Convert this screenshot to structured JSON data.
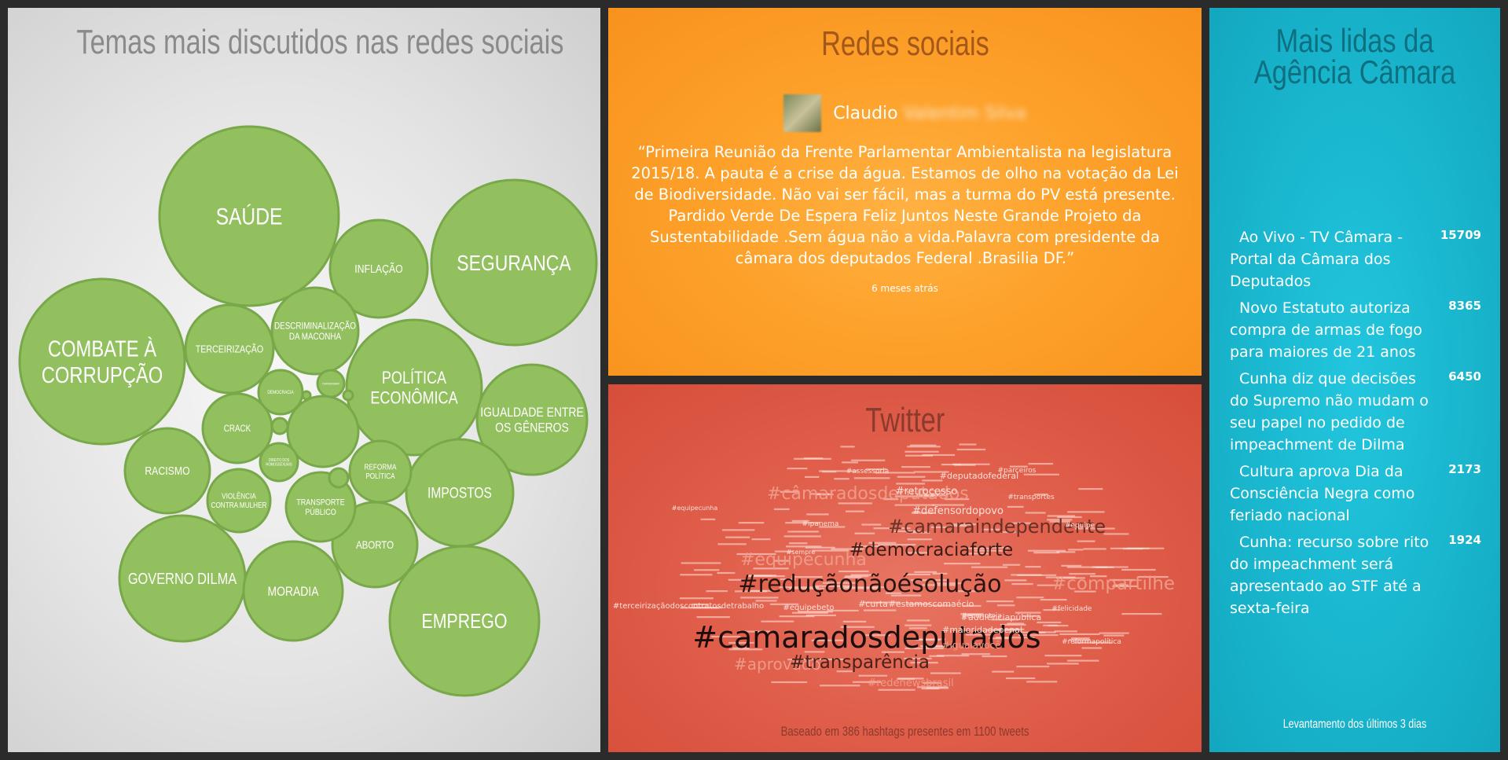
{
  "bubbles": {
    "title": "Temas mais discutidos nas redes sociais",
    "topics": [
      {
        "label": "SAÚDE"
      },
      {
        "label": "SEGURANÇA"
      },
      {
        "label": "COMBATE À\nCORRUPÇÃO"
      },
      {
        "label": "EMPREGO"
      },
      {
        "label": "GOVERNO DILMA"
      },
      {
        "label": "POLÍTICA\nECONÔMICA"
      },
      {
        "label": "IGUALDADE ENTRE\nOS GÊNEROS"
      },
      {
        "label": "IMPOSTOS"
      },
      {
        "label": "MORADIA"
      },
      {
        "label": "INFLAÇÃO"
      },
      {
        "label": "ABORTO"
      },
      {
        "label": "RACISMO"
      },
      {
        "label": "TERCEIRIZAÇÃO"
      },
      {
        "label": "DESCRIMINALIZAÇÃO\nDA MACONHA"
      },
      {
        "label": "TRANSPORTE\nPÚBLICO"
      },
      {
        "label": "CRACK"
      },
      {
        "label": "REFORMA\nPOLÍTICA"
      },
      {
        "label": "VIOLÊNCIA\nCONTRA MULHER"
      },
      {
        "label": ""
      },
      {
        "label": "DEMOCRACIA"
      },
      {
        "label": "DIREITO DOS\nHOMOSSEXUAIS"
      },
      {
        "label": "TERRORISMO"
      },
      {
        "label": ""
      },
      {
        "label": ""
      },
      {
        "label": ""
      },
      {
        "label": ""
      }
    ]
  },
  "social": {
    "title": "Redes sociais",
    "author_first": "Claudio",
    "author_last": "Valentim Silva",
    "quote": "“Primeira Reunião da Frente Parlamentar Ambientalista na legislatura 2015/18. A pauta é a crise da água. Estamos de olho na votação da Lei de Biodiversidade. Não vai ser fácil, mas a turma do PV está presente. Pardido Verde De Espera Feliz Juntos Neste Grande Projeto da Sustentabilidade .Sem água não a vida.Palavra com presidente da câmara dos deputados Federal .Brasilia DF.”",
    "time": "6 meses atrás"
  },
  "twitter": {
    "title": "Twitter",
    "footer": "Baseado em 386 hashtags presentes em 1100 tweets",
    "tags": [
      {
        "text": "#câmaradosdeputados"
      },
      {
        "text": "#retrocesso"
      },
      {
        "text": "#defensordopovo"
      },
      {
        "text": "#deputadofederal"
      },
      {
        "text": "#camaraindependente"
      },
      {
        "text": "#equipecunha"
      },
      {
        "text": "#democraciaforte"
      },
      {
        "text": "#reduçãonãoésolução"
      },
      {
        "text": "#compartilhe"
      },
      {
        "text": "#terceirizaçãodoscontratosdetrabalho"
      },
      {
        "text": "#equipebeto"
      },
      {
        "text": "#curta"
      },
      {
        "text": "#estamoscomaécio"
      },
      {
        "text": "#audiênciapública"
      },
      {
        "text": "#camaradosdeputados"
      },
      {
        "text": "#maioridadepenal"
      },
      {
        "text": "#igualavocê"
      },
      {
        "text": "#aprovado"
      },
      {
        "text": "#transparência"
      },
      {
        "text": "#redenewsbrasil"
      },
      {
        "text": "#reformapolítica"
      },
      {
        "text": "#equipecunha"
      },
      {
        "text": "#sempre"
      },
      {
        "text": "#transportes"
      },
      {
        "text": "#ipanema"
      },
      {
        "text": "#assessoria"
      },
      {
        "text": "#felicidade"
      },
      {
        "text": "#economia"
      },
      {
        "text": "#equipe"
      },
      {
        "text": "#parceiros"
      }
    ]
  },
  "news": {
    "title": "Mais lidas da Agência Câmara",
    "items": [
      {
        "title": "Ao Vivo - TV Câmara - Portal da Câmara dos Deputados",
        "count": 15709
      },
      {
        "title": "Novo Estatuto autoriza compra de armas de fogo para maiores de 21 anos",
        "count": 8365
      },
      {
        "title": "Cunha diz que decisões do Supremo não mudam o seu papel no pedido de impeachment de Dilma",
        "count": 6450
      },
      {
        "title": "Cultura aprova Dia da Consciência Negra como feriado nacional",
        "count": 2173
      },
      {
        "title": "Cunha: recurso sobre rito do impeachment será apresentado ao STF até a sexta-feira",
        "count": 1924
      }
    ],
    "footer": "Levantamento dos últimos 3 dias"
  },
  "colors": {
    "bubble_fill": "#93c05e",
    "bubble_stroke": "#78a84a",
    "social_bg": "#fda12a",
    "twitter_bg": "#e05f4b",
    "news_bg": "#19b6ce"
  }
}
